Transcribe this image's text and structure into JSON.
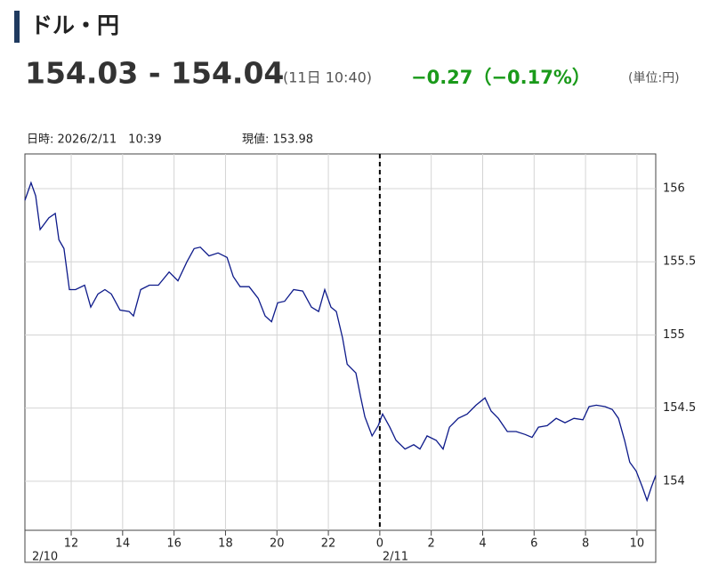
{
  "header": {
    "title": "ドル・円",
    "price": "154.03 - 154.04",
    "time": "(11日 10:40)",
    "change": "−0.27（−0.17%）",
    "unit": "(単位:円)"
  },
  "chart_data": {
    "type": "line",
    "info_time": "日時: 2026/2/11　10:39",
    "info_value": "現値: 153.98",
    "date_labels": [
      "2/10",
      "2/11"
    ],
    "color": "#0d1a8a",
    "grid": true,
    "divider_x": 24,
    "xlim": [
      10.2,
      34.73
    ],
    "ylim": [
      153.665,
      156.237
    ],
    "xticks": [
      12,
      14,
      16,
      18,
      20,
      22,
      {
        "value": 24,
        "label": "0"
      },
      {
        "value": 26,
        "label": "2"
      },
      {
        "value": 28,
        "label": "4"
      },
      {
        "value": 30,
        "label": "6"
      },
      {
        "value": 32,
        "label": "8"
      },
      {
        "value": 34,
        "label": "10"
      }
    ],
    "yticks": [
      154,
      154.5,
      155,
      155.5,
      156
    ],
    "x": [
      10.2,
      10.44,
      10.62,
      10.79,
      11.13,
      11.38,
      11.52,
      11.72,
      11.93,
      12.17,
      12.52,
      12.76,
      13.04,
      13.31,
      13.56,
      13.9,
      14.25,
      14.42,
      14.7,
      15.04,
      15.39,
      15.81,
      16.15,
      16.5,
      16.78,
      17.02,
      17.36,
      17.71,
      18.06,
      18.3,
      18.57,
      18.92,
      19.27,
      19.54,
      19.79,
      20.03,
      20.3,
      20.65,
      21.0,
      21.34,
      21.62,
      21.86,
      22.1,
      22.31,
      22.55,
      22.73,
      23.07,
      23.25,
      23.42,
      23.7,
      23.94,
      24.11,
      24.39,
      24.63,
      24.98,
      25.32,
      25.56,
      25.84,
      26.19,
      26.46,
      26.71,
      27.05,
      27.4,
      27.74,
      28.09,
      28.33,
      28.61,
      28.96,
      29.3,
      29.65,
      29.92,
      30.17,
      30.51,
      30.86,
      31.2,
      31.55,
      31.9,
      32.14,
      32.42,
      32.76,
      33.04,
      33.28,
      33.52,
      33.72,
      33.97,
      34.21,
      34.39,
      34.56,
      34.73
    ],
    "values": [
      155.92,
      156.04,
      155.95,
      155.72,
      155.8,
      155.83,
      155.65,
      155.59,
      155.31,
      155.31,
      155.34,
      155.19,
      155.28,
      155.31,
      155.28,
      155.17,
      155.16,
      155.13,
      155.31,
      155.34,
      155.34,
      155.43,
      155.37,
      155.5,
      155.59,
      155.6,
      155.54,
      155.56,
      155.53,
      155.4,
      155.33,
      155.33,
      155.25,
      155.13,
      155.09,
      155.22,
      155.23,
      155.31,
      155.3,
      155.19,
      155.16,
      155.31,
      155.19,
      155.16,
      154.98,
      154.8,
      154.74,
      154.58,
      154.44,
      154.31,
      154.38,
      154.46,
      154.37,
      154.28,
      154.22,
      154.25,
      154.22,
      154.31,
      154.28,
      154.22,
      154.37,
      154.43,
      154.46,
      154.52,
      154.57,
      154.48,
      154.43,
      154.34,
      154.34,
      154.32,
      154.3,
      154.37,
      154.38,
      154.43,
      154.4,
      154.43,
      154.42,
      154.51,
      154.52,
      154.51,
      154.49,
      154.43,
      154.28,
      154.13,
      154.07,
      153.96,
      153.87,
      153.96,
      154.04
    ]
  }
}
